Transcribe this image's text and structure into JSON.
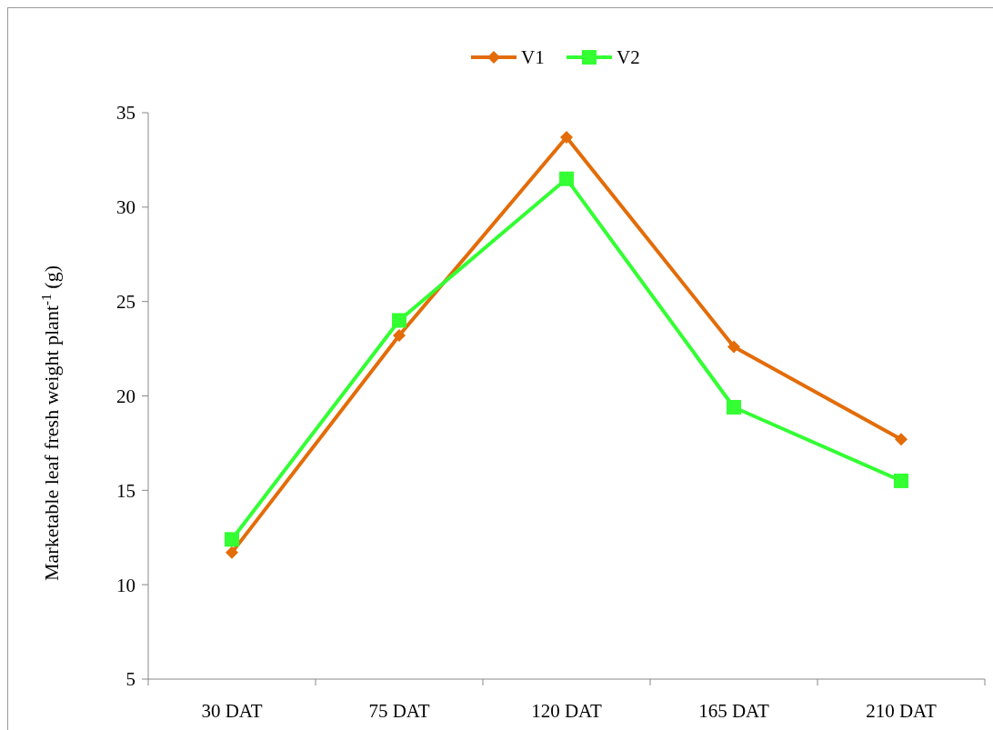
{
  "chart_data": {
    "type": "line",
    "ylabel": "Marketable leaf fresh weight plant$^{-1}$ (g)",
    "categories": [
      "30 DAT",
      "75 DAT",
      "120 DAT",
      "165 DAT",
      "210 DAT"
    ],
    "series": [
      {
        "name": "V1",
        "color": "#e36c09",
        "marker": "diamond",
        "values": [
          11.7,
          23.2,
          33.7,
          22.6,
          17.7
        ]
      },
      {
        "name": "V2",
        "color": "#33ff33",
        "marker": "square",
        "values": [
          12.4,
          24.0,
          31.5,
          19.4,
          15.5
        ]
      }
    ],
    "ylim": [
      5,
      35
    ],
    "yticks": [
      5,
      10,
      15,
      20,
      25,
      30,
      35
    ],
    "grid": false,
    "legend": "top",
    "line_style": "solid"
  }
}
